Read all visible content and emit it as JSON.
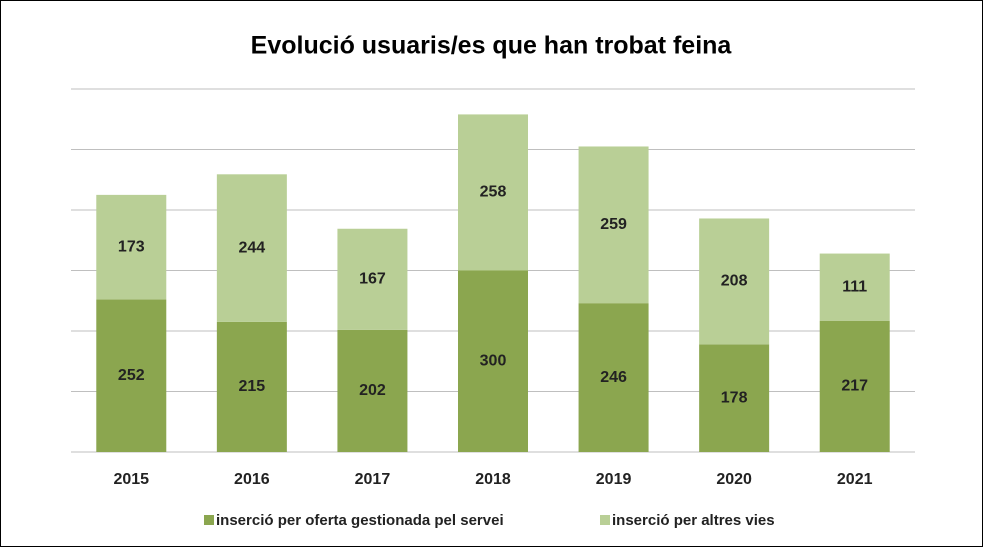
{
  "chart_data": {
    "type": "stacked_bar",
    "title": "Evolució usuaris/es que han trobat feina",
    "categories": [
      "2015",
      "2016",
      "2017",
      "2018",
      "2019",
      "2020",
      "2021"
    ],
    "series": [
      {
        "name": "inserció per oferta gestionada pel servei",
        "color": "#8ba64f",
        "values": [
          252,
          215,
          202,
          300,
          246,
          178,
          217
        ]
      },
      {
        "name": "inserció per altres vies",
        "color": "#b9cf96",
        "values": [
          173,
          244,
          167,
          258,
          259,
          208,
          111
        ]
      }
    ],
    "ylim": [
      0,
      600
    ],
    "yticks": [
      0,
      100,
      200,
      300,
      400,
      500,
      600
    ],
    "grid": true,
    "legend": "bottom"
  }
}
